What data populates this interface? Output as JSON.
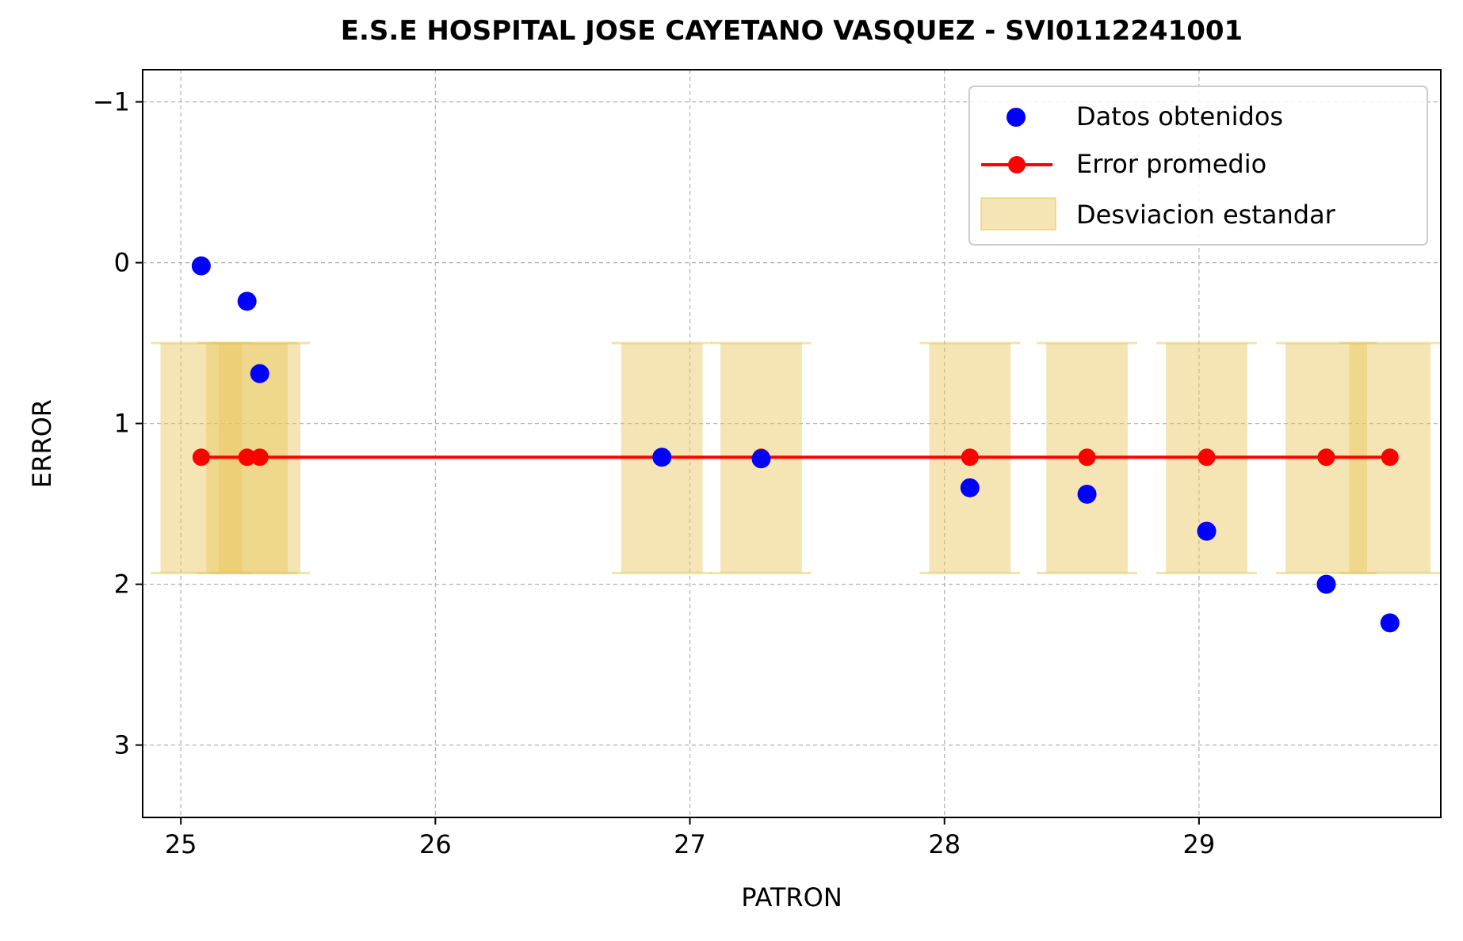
{
  "chart_data": {
    "type": "scatter",
    "title": "E.S.E HOSPITAL JOSE CAYETANO VASQUEZ - SVI0112241001",
    "xlabel": "PATRON",
    "ylabel": "ERROR",
    "xlim": [
      24.85,
      29.95
    ],
    "ylim": [
      3.45,
      -1.2
    ],
    "y_inverted": true,
    "x_ticks": [
      25,
      26,
      27,
      28,
      29
    ],
    "x_tick_labels": [
      "25",
      "26",
      "27",
      "28",
      "29"
    ],
    "y_ticks": [
      -1,
      0,
      1,
      2,
      3
    ],
    "y_tick_labels": [
      "−1",
      "0",
      "1",
      "2",
      "3"
    ],
    "grid": true,
    "legend_position": "upper-right",
    "colors": {
      "data_points": "#0000ff",
      "mean_line": "#ff0000",
      "std_band": "#e8c65a",
      "grid": "#b0b0b0"
    },
    "series": [
      {
        "name": "Datos obtenidos",
        "kind": "scatter",
        "x": [
          25.08,
          25.26,
          25.31,
          26.89,
          27.28,
          28.1,
          28.56,
          29.03,
          29.5,
          29.75
        ],
        "y": [
          0.02,
          0.24,
          0.69,
          1.21,
          1.22,
          1.4,
          1.44,
          1.67,
          2.0,
          2.24
        ]
      },
      {
        "name": "Error promedio",
        "kind": "line",
        "x": [
          25.08,
          25.26,
          25.31,
          26.89,
          27.28,
          28.1,
          28.56,
          29.03,
          29.5,
          29.75
        ],
        "y": [
          1.21,
          1.21,
          1.21,
          1.21,
          1.21,
          1.21,
          1.21,
          1.21,
          1.21,
          1.21
        ]
      },
      {
        "name": "Desviacion estandar",
        "kind": "band",
        "x": [
          25.08,
          25.26,
          25.31,
          26.89,
          27.28,
          28.1,
          28.56,
          29.03,
          29.5,
          29.75
        ],
        "lower": [
          0.5,
          0.5,
          0.5,
          0.5,
          0.5,
          0.5,
          0.5,
          0.5,
          0.5,
          0.5
        ],
        "upper": [
          1.93,
          1.93,
          1.93,
          1.93,
          1.93,
          1.93,
          1.93,
          1.93,
          1.93,
          1.93
        ],
        "width": 0.32
      }
    ]
  }
}
